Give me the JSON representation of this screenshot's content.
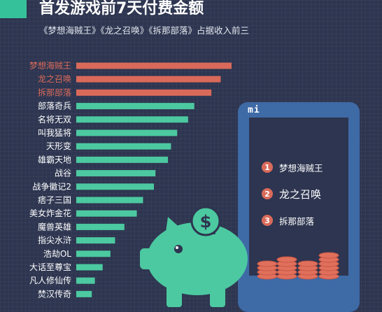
{
  "header": {
    "title": "首发游戏前7天付费金额",
    "subtitle": "《梦想海贼王》《龙之召唤》《拆那部落》占据收入前三"
  },
  "colors": {
    "top3": "#d96a5a",
    "others": "#4cc9a0",
    "accent": "#35c29a",
    "phone": "#3e6aa6",
    "coins": "#e0705c"
  },
  "phone": {
    "logo": "mi",
    "ranking": [
      {
        "rank": "1",
        "name": "梦想海贼王"
      },
      {
        "rank": "2",
        "name": "龙之召唤"
      },
      {
        "rank": "3",
        "name": "拆那部落"
      }
    ]
  },
  "piggy_icon": "piggy-bank-dollar-icon",
  "chart_data": {
    "type": "bar",
    "orientation": "horizontal",
    "title": "首发游戏前7天付费金额",
    "subtitle": "《梦想海贼王》《龙之召唤》《拆那部落》占据收入前三",
    "xlabel": "",
    "ylabel": "",
    "categories": [
      "梦想海贼王",
      "龙之召唤",
      "拆那部落",
      "部落奇兵",
      "名将无双",
      "叫我猛将",
      "天形变",
      "雄霸天地",
      "战谷",
      "战争徽记2",
      "痞子三国",
      "美女炸金花",
      "魔兽英雄",
      "指尖水浒",
      "浩劫OL",
      "大话至尊宝",
      "凡人修仙传",
      "焚汉传奇"
    ],
    "values": [
      100,
      93,
      87,
      76,
      72,
      65,
      61,
      59,
      51,
      50,
      43,
      39,
      31,
      25,
      22,
      17,
      12,
      10
    ],
    "highlight_top": 3,
    "xlim": [
      0,
      100
    ],
    "axis_labels_visible": false,
    "grid": false
  }
}
